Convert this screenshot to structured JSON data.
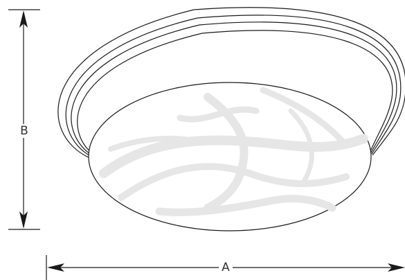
{
  "dimensions": {
    "height_label": "B",
    "width_label": "A"
  },
  "colors": {
    "outline": "#1a1a1a",
    "glass_swirl": "#e6e6e6",
    "background": "#ffffff"
  }
}
